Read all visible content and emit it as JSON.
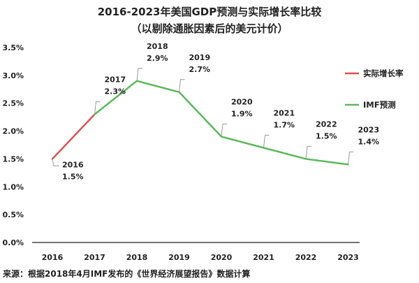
{
  "chart_data": {
    "type": "line",
    "title": "2016-2023年美国GDP预测与实际增长率比较",
    "subtitle": "（以剔除通胀因素后的美元计价）",
    "categories": [
      "2016",
      "2017",
      "2018",
      "2019",
      "2020",
      "2021",
      "2022",
      "2023"
    ],
    "series": [
      {
        "name": "实际增长率",
        "color": "#d9534f",
        "x": [
          "2016",
          "2017"
        ],
        "values": [
          1.5,
          2.3
        ]
      },
      {
        "name": "IMF预测",
        "color": "#5cb85c",
        "x": [
          "2017",
          "2018",
          "2019",
          "2020",
          "2021",
          "2022",
          "2023"
        ],
        "values": [
          2.3,
          2.9,
          2.7,
          1.9,
          1.7,
          1.5,
          1.4
        ]
      }
    ],
    "data_labels": [
      {
        "year": "2016",
        "value": "1.5%"
      },
      {
        "year": "2017",
        "value": "2.3%"
      },
      {
        "year": "2018",
        "value": "2.9%"
      },
      {
        "year": "2019",
        "value": "2.7%"
      },
      {
        "year": "2020",
        "value": "1.9%"
      },
      {
        "year": "2021",
        "value": "1.7%"
      },
      {
        "year": "2022",
        "value": "1.5%"
      },
      {
        "year": "2023",
        "value": "1.4%"
      }
    ],
    "y_ticks": [
      "0.0%",
      "0.5%",
      "1.0%",
      "1.5%",
      "2.0%",
      "2.5%",
      "3.0%",
      "3.5%"
    ],
    "ylim": [
      0,
      3.5
    ],
    "grid": false,
    "legend_position": "right",
    "source": "来源：根据2018年4月IMF发布的《世界经济展望报告》数据计算"
  }
}
